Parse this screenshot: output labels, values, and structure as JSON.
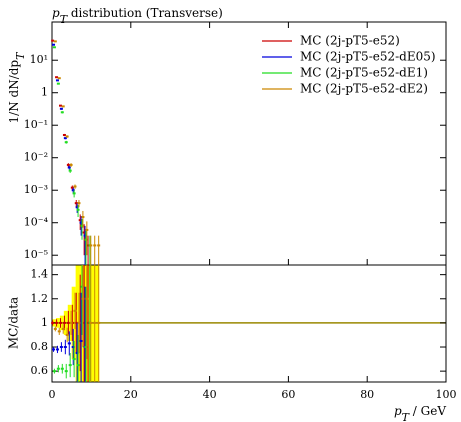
{
  "chart_data": {
    "type": "scatter",
    "title": {
      "var": "p",
      "sub": "T",
      "text": " distribution (Transverse)"
    },
    "ylabel": {
      "text": "1/N dN/dp",
      "sub": "T"
    },
    "ratio_ylabel": "MC/data",
    "xlabel": {
      "var": "p",
      "sub": "T",
      "text": " / GeV"
    },
    "xlim": [
      0,
      100
    ],
    "xticks": [
      0,
      20,
      40,
      60,
      80,
      100
    ],
    "ylim": [
      5e-06,
      150
    ],
    "ylog": true,
    "yticks": [
      {
        "value": 1e-05,
        "label": "10⁻⁵"
      },
      {
        "value": 0.0001,
        "label": "10⁻⁴"
      },
      {
        "value": 0.001,
        "label": "10⁻³"
      },
      {
        "value": 0.01,
        "label": "10⁻²"
      },
      {
        "value": 0.1,
        "label": "10⁻¹"
      },
      1,
      {
        "value": 10,
        "label": "10¹"
      }
    ],
    "ratio_ylim": [
      0.51,
      1.48
    ],
    "ratio_yticks": [
      0.6,
      0.8,
      1,
      1.2,
      1.4
    ],
    "ratio_reference": 1,
    "legend": "upper right",
    "bins": [
      0,
      1,
      2,
      3,
      4,
      5,
      6,
      7,
      8,
      9,
      10,
      11,
      12
    ],
    "band": {
      "color": "#ffff00",
      "halfwidths": [
        0.03,
        0.04,
        0.06,
        0.1,
        0.15,
        0.3,
        0.5,
        0.6,
        0.6,
        0.6,
        0.6,
        0.6
      ]
    },
    "series": [
      {
        "name": "MC (2j-pT5-e52)",
        "color": "#cc0000",
        "values": [
          40,
          3,
          0.4,
          0.05,
          0.006,
          0.0012,
          0.0004,
          0.00012,
          5e-05,
          2e-05,
          null,
          null
        ],
        "errors": [
          1,
          0.1,
          0.02,
          0.004,
          0.0008,
          0.0002,
          0.0001,
          6e-05,
          4e-05,
          2e-05,
          null,
          null
        ],
        "ratio": [
          1,
          1,
          1,
          1,
          1,
          1,
          1,
          1,
          1,
          1,
          null,
          null
        ],
        "ratio_errors": [
          0.02,
          0.03,
          0.04,
          0.06,
          0.1,
          0.15,
          0.25,
          0.4,
          0.5,
          0.5,
          null,
          null
        ]
      },
      {
        "name": "MC (2j-pT5-e52-dE05)",
        "color": "#0000dd",
        "values": [
          30,
          2.4,
          0.32,
          0.04,
          0.005,
          0.001,
          0.0003,
          0.0001,
          4e-05,
          null,
          null,
          null
        ],
        "errors": [
          1,
          0.1,
          0.02,
          0.003,
          0.0007,
          0.0002,
          0.0001,
          6e-05,
          4e-05,
          null,
          null,
          null
        ],
        "ratio": [
          0.78,
          0.78,
          0.8,
          0.8,
          0.83,
          0.8,
          0.75,
          0.85,
          0.8,
          null,
          null,
          null
        ],
        "ratio_errors": [
          0.02,
          0.03,
          0.04,
          0.06,
          0.1,
          0.15,
          0.25,
          0.4,
          0.5,
          null,
          null,
          null
        ]
      },
      {
        "name": "MC (2j-pT5-e52-dE1)",
        "color": "#22dd22",
        "values": [
          25,
          1.9,
          0.25,
          0.03,
          0.004,
          0.0008,
          0.00025,
          8e-05,
          3e-05,
          2e-05,
          null,
          null
        ],
        "errors": [
          1,
          0.1,
          0.02,
          0.003,
          0.0006,
          0.0002,
          0.0001,
          5e-05,
          3e-05,
          2e-05,
          null,
          null
        ],
        "ratio": [
          0.6,
          0.62,
          0.62,
          0.6,
          0.65,
          0.7,
          0.65,
          1.3,
          0.8,
          1,
          null,
          null
        ],
        "ratio_errors": [
          0.02,
          0.03,
          0.04,
          0.06,
          0.1,
          0.15,
          0.25,
          0.4,
          0.5,
          0.5,
          null,
          null
        ]
      },
      {
        "name": "MC (2j-pT5-e52-dE2)",
        "color": "#cc8800",
        "values": [
          38,
          2.8,
          0.38,
          0.045,
          0.006,
          0.0013,
          0.0004,
          0.00015,
          6e-05,
          2e-05,
          2e-05,
          2e-05
        ],
        "errors": [
          1,
          0.1,
          0.02,
          0.004,
          0.0008,
          0.0002,
          0.0001,
          8e-05,
          5e-05,
          2e-05,
          2e-05,
          2e-05
        ],
        "ratio": [
          0.95,
          0.93,
          0.95,
          0.9,
          1,
          1.1,
          1,
          1.2,
          1.2,
          1,
          1,
          1
        ],
        "ratio_errors": [
          0.02,
          0.03,
          0.04,
          0.06,
          0.1,
          0.15,
          0.25,
          0.4,
          0.5,
          0.5,
          0.5,
          0.5
        ]
      }
    ]
  }
}
